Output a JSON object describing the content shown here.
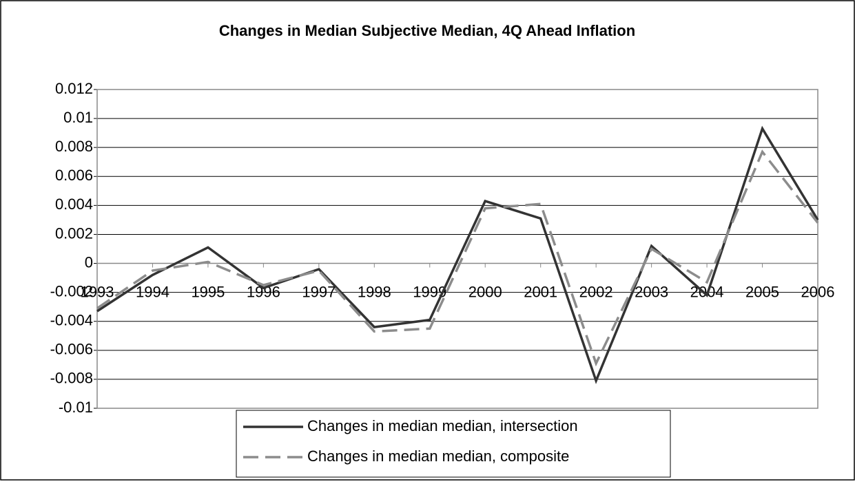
{
  "chart_data": {
    "type": "line",
    "title": "Changes in Median Subjective Median, 4Q Ahead Inflation",
    "categories": [
      "1993",
      "1994",
      "1995",
      "1996",
      "1997",
      "1998",
      "1999",
      "2000",
      "2001",
      "2002",
      "2003",
      "2004",
      "2005",
      "2006"
    ],
    "series": [
      {
        "name": "Changes in median median, intersection",
        "color": "#333333",
        "dash": false,
        "values": [
          -0.0033,
          -0.0008,
          0.0011,
          -0.0017,
          -0.0004,
          -0.0044,
          -0.0039,
          0.0043,
          0.0031,
          -0.0081,
          0.0012,
          -0.0022,
          0.0093,
          0.003
        ]
      },
      {
        "name": "Changes in median median, composite",
        "color": "#8c8c8c",
        "dash": true,
        "values": [
          -0.0031,
          -0.0005,
          0.0001,
          -0.0015,
          -0.0005,
          -0.0047,
          -0.0045,
          0.0038,
          0.0041,
          -0.0069,
          0.001,
          -0.0013,
          0.0077,
          0.0028
        ]
      }
    ],
    "ylim": [
      -0.01,
      0.012
    ],
    "yticks": [
      -0.01,
      -0.008,
      -0.006,
      -0.004,
      -0.002,
      0,
      0.002,
      0.004,
      0.006,
      0.008,
      0.01,
      0.012
    ],
    "grid": true,
    "legend": "bottom"
  }
}
